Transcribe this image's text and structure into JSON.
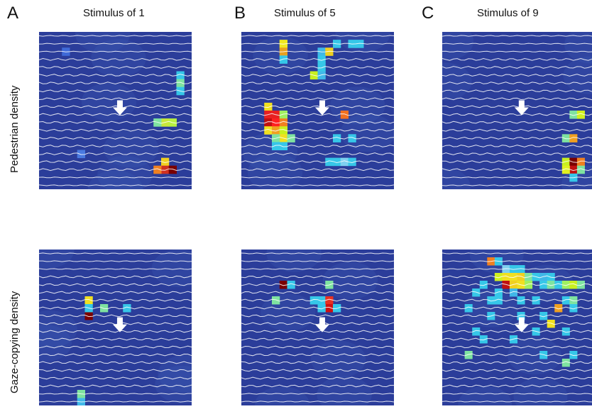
{
  "panels": [
    {
      "letter": "A",
      "title": "Stimulus of 1"
    },
    {
      "letter": "B",
      "title": "Stimulus of 5"
    },
    {
      "letter": "C",
      "title": "Stimulus of 9"
    }
  ],
  "rows": [
    {
      "label": "Pedestrian density"
    },
    {
      "label": "Gaze-copying density"
    }
  ],
  "colors": {
    "background": "#2b3d9a",
    "flow_lines": "#ffffff",
    "arrow": "#ffffff"
  },
  "chart_data": {
    "type": "heatmap",
    "colormap": "jet",
    "grid": [
      20,
      20
    ],
    "cells": {
      "ped_1": [
        [
          18,
          5,
          "#36c7e8"
        ],
        [
          18,
          6,
          "#7fe3a0"
        ],
        [
          18,
          7,
          "#36c7e8"
        ],
        [
          16,
          11,
          "#c8e83a"
        ],
        [
          17,
          11,
          "#b8f040"
        ],
        [
          15,
          11,
          "#7fe3a0"
        ],
        [
          16,
          16,
          "#f0d020"
        ],
        [
          16,
          17,
          "#d03020"
        ],
        [
          17,
          17,
          "#7a0000"
        ],
        [
          15,
          17,
          "#f08020"
        ],
        [
          5,
          15,
          "#4a7ae0"
        ],
        [
          3,
          2,
          "#3f6ad8"
        ]
      ],
      "ped_5": [
        [
          5,
          1,
          "#f0e820"
        ],
        [
          5,
          2,
          "#e8a020"
        ],
        [
          12,
          1,
          "#36c7e8"
        ],
        [
          14,
          1,
          "#36c7e8"
        ],
        [
          15,
          1,
          "#36c7e8"
        ],
        [
          10,
          2,
          "#40b8e8"
        ],
        [
          11,
          2,
          "#f0d020"
        ],
        [
          5,
          3,
          "#36c7e8"
        ],
        [
          10,
          3,
          "#36c7e8"
        ],
        [
          10,
          4,
          "#36c7e8"
        ],
        [
          9,
          5,
          "#c8f020"
        ],
        [
          10,
          5,
          "#40b8e8"
        ],
        [
          3,
          9,
          "#f0e020"
        ],
        [
          3,
          10,
          "#e82020"
        ],
        [
          3,
          11,
          "#c01010"
        ],
        [
          3,
          12,
          "#f0e020"
        ],
        [
          4,
          10,
          "#e82020"
        ],
        [
          4,
          11,
          "#ff2020"
        ],
        [
          4,
          12,
          "#f0a020"
        ],
        [
          5,
          10,
          "#a0f060"
        ],
        [
          5,
          11,
          "#f08020"
        ],
        [
          5,
          12,
          "#c8f020"
        ],
        [
          5,
          13,
          "#f0e020"
        ],
        [
          4,
          13,
          "#7fe3a0"
        ],
        [
          5,
          14,
          "#36c7e8"
        ],
        [
          6,
          13,
          "#7fe3a0"
        ],
        [
          4,
          14,
          "#36c7e8"
        ],
        [
          13,
          10,
          "#f07020"
        ],
        [
          12,
          13,
          "#36c7e8"
        ],
        [
          14,
          13,
          "#36c7e8"
        ],
        [
          11,
          16,
          "#36c7e8"
        ],
        [
          12,
          16,
          "#36c7e8"
        ],
        [
          13,
          16,
          "#7fd0f0"
        ],
        [
          14,
          16,
          "#36c7e8"
        ]
      ],
      "ped_9": [
        [
          17,
          10,
          "#7fe3a0"
        ],
        [
          18,
          10,
          "#d0f020"
        ],
        [
          16,
          13,
          "#7fe3a0"
        ],
        [
          17,
          13,
          "#f0a020"
        ],
        [
          16,
          16,
          "#c8f020"
        ],
        [
          17,
          16,
          "#7a0000"
        ],
        [
          17,
          17,
          "#c01010"
        ],
        [
          18,
          16,
          "#f08020"
        ],
        [
          16,
          17,
          "#e0f020"
        ],
        [
          18,
          17,
          "#7fe3a0"
        ],
        [
          17,
          18,
          "#36c7e8"
        ]
      ],
      "gaze_1": [
        [
          6,
          6,
          "#f0e020"
        ],
        [
          8,
          7,
          "#7fe3a0"
        ],
        [
          11,
          7,
          "#36c7e8"
        ],
        [
          6,
          8,
          "#7a0000"
        ],
        [
          6,
          7,
          "#36c7e8"
        ],
        [
          5,
          19,
          "#40b8e8"
        ],
        [
          5,
          18,
          "#7fe3a0"
        ]
      ],
      "gaze_5": [
        [
          5,
          4,
          "#7a0000"
        ],
        [
          6,
          4,
          "#36c7e8"
        ],
        [
          11,
          4,
          "#7fe3a0"
        ],
        [
          4,
          6,
          "#7fe3a0"
        ],
        [
          9,
          6,
          "#36c7e8"
        ],
        [
          10,
          6,
          "#36c7e8"
        ],
        [
          11,
          6,
          "#e83020"
        ],
        [
          11,
          7,
          "#d01010"
        ],
        [
          10,
          7,
          "#36c7e8"
        ],
        [
          12,
          7,
          "#36c7e8"
        ]
      ],
      "gaze_9": [
        [
          6,
          1,
          "#f08020"
        ],
        [
          7,
          1,
          "#36c7e8"
        ],
        [
          8,
          2,
          "#7fd0f0"
        ],
        [
          9,
          2,
          "#36c7e8"
        ],
        [
          10,
          2,
          "#36c7e8"
        ],
        [
          7,
          3,
          "#d0f020"
        ],
        [
          8,
          3,
          "#f0e020"
        ],
        [
          9,
          3,
          "#f0e020"
        ],
        [
          10,
          3,
          "#f0d020"
        ],
        [
          11,
          3,
          "#7fe3a0"
        ],
        [
          12,
          3,
          "#36c7e8"
        ],
        [
          13,
          3,
          "#40b8e8"
        ],
        [
          14,
          3,
          "#36c7e8"
        ],
        [
          8,
          4,
          "#c01010"
        ],
        [
          9,
          4,
          "#f0d020"
        ],
        [
          10,
          4,
          "#f0e020"
        ],
        [
          11,
          4,
          "#a0f060"
        ],
        [
          13,
          4,
          "#36c7e8"
        ],
        [
          14,
          4,
          "#7fe3a0"
        ],
        [
          15,
          4,
          "#36c7e8"
        ],
        [
          16,
          4,
          "#a0f060"
        ],
        [
          17,
          4,
          "#c8f020"
        ],
        [
          18,
          4,
          "#7fe3a0"
        ],
        [
          5,
          4,
          "#36c7e8"
        ],
        [
          4,
          5,
          "#36c7e8"
        ],
        [
          7,
          5,
          "#36c7e8"
        ],
        [
          9,
          5,
          "#40b8e8"
        ],
        [
          6,
          6,
          "#36c7e8"
        ],
        [
          7,
          6,
          "#36c7e8"
        ],
        [
          10,
          6,
          "#36c7e8"
        ],
        [
          12,
          6,
          "#36c7e8"
        ],
        [
          16,
          6,
          "#36c7e8"
        ],
        [
          17,
          6,
          "#7fe3a0"
        ],
        [
          15,
          7,
          "#f0a020"
        ],
        [
          17,
          7,
          "#36c7e8"
        ],
        [
          3,
          7,
          "#36c7e8"
        ],
        [
          6,
          8,
          "#36c7e8"
        ],
        [
          10,
          8,
          "#36c7e8"
        ],
        [
          13,
          8,
          "#36c7e8"
        ],
        [
          14,
          9,
          "#f0e020"
        ],
        [
          4,
          10,
          "#36c7e8"
        ],
        [
          12,
          10,
          "#36c7e8"
        ],
        [
          16,
          10,
          "#36c7e8"
        ],
        [
          5,
          11,
          "#36c7e8"
        ],
        [
          9,
          11,
          "#36c7e8"
        ],
        [
          3,
          13,
          "#7fe3a0"
        ],
        [
          13,
          13,
          "#36c7e8"
        ],
        [
          16,
          14,
          "#7fe3a0"
        ],
        [
          17,
          13,
          "#36c7e8"
        ]
      ]
    }
  }
}
